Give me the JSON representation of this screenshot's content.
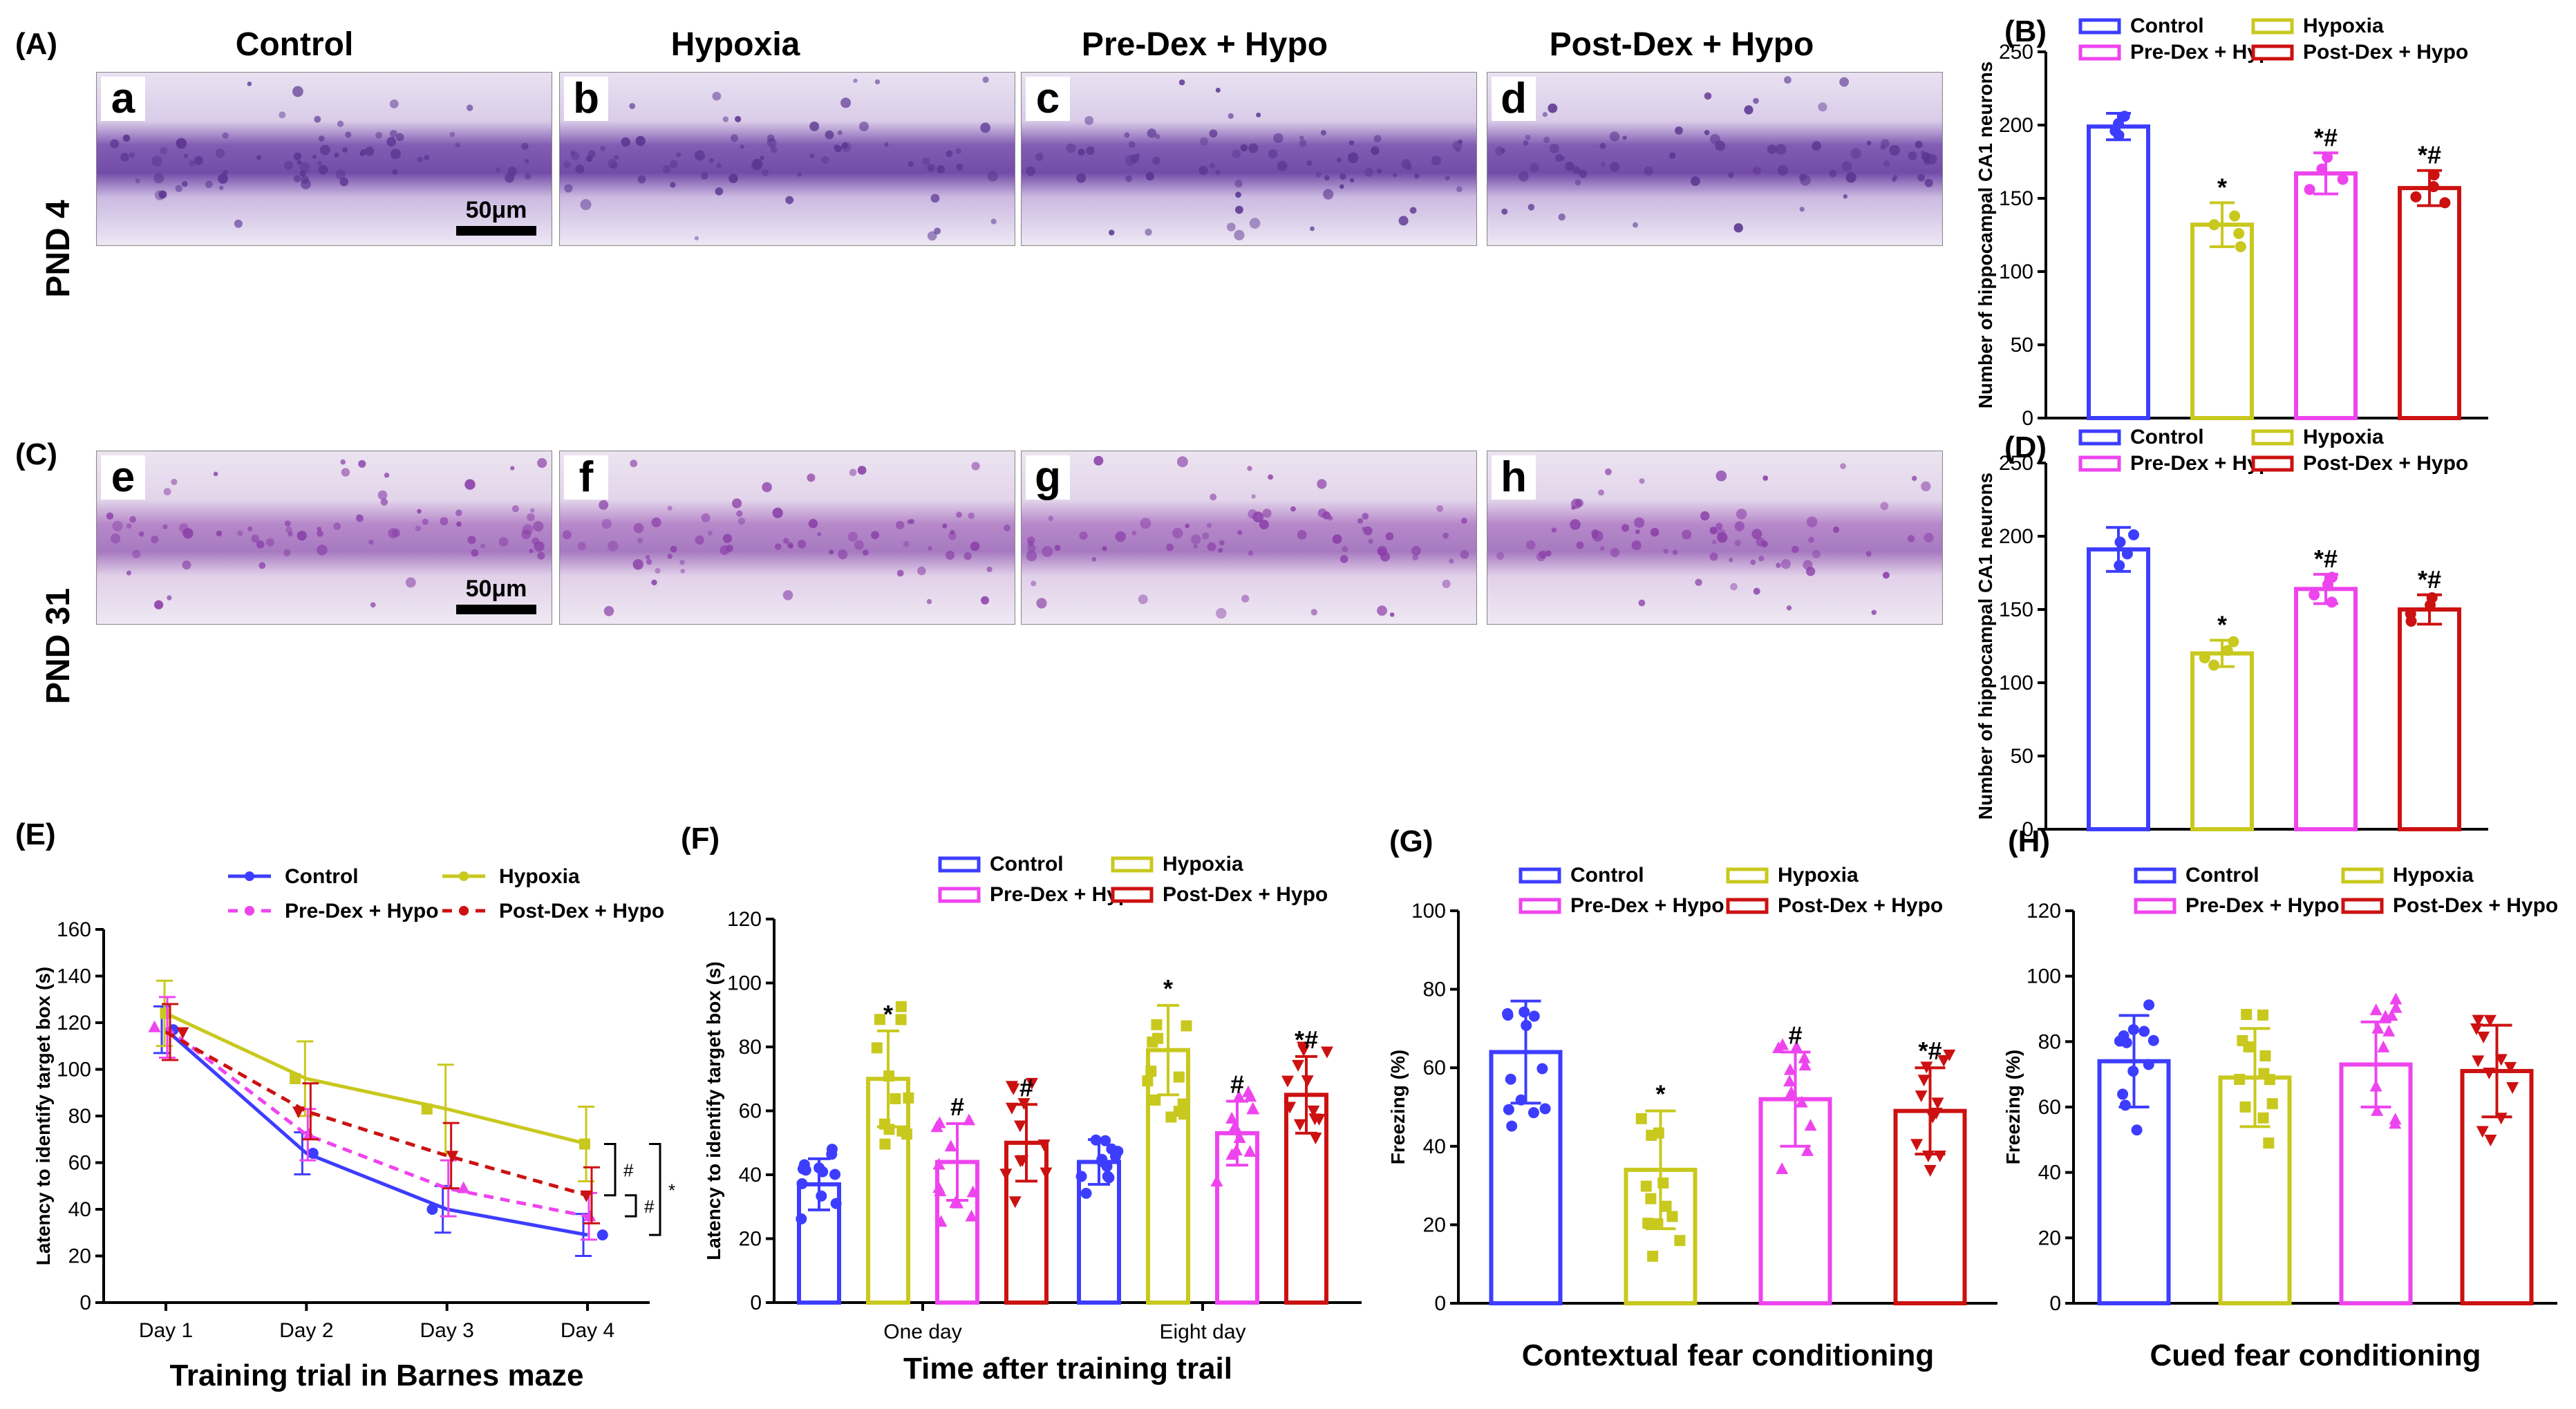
{
  "colors": {
    "Control": "#3d3dff",
    "Hypoxia": "#c8c81e",
    "Pre-Dex + Hypo": "#ee44ee",
    "Post-Dex + Hypo": "#cc1111",
    "stain_bg": "#e6ddf0",
    "stain_cell": "#6b3c9a"
  },
  "micrograph": {
    "columns": [
      "Control",
      "Hypoxia",
      "Pre-Dex + Hypo",
      "Post-Dex + Hypo"
    ],
    "panelA_label": "(A)",
    "panelC_label": "(C)",
    "row_labels": [
      "PND 4",
      "PND 31"
    ],
    "letters_top": [
      "a",
      "b",
      "c",
      "d"
    ],
    "letters_bottom": [
      "e",
      "f",
      "g",
      "h"
    ],
    "scale_bar_label": "50μm"
  },
  "chart_data": [
    {
      "id": "B",
      "panel_label": "(B)",
      "type": "bar",
      "categories": [
        "Control",
        "Hypoxia",
        "Pre-Dex + Hypo",
        "Post-Dex + Hypo"
      ],
      "values": [
        199,
        132,
        167,
        157
      ],
      "errors": [
        9,
        15,
        14,
        12
      ],
      "points": [
        [
          193,
          196,
          201,
          206
        ],
        [
          117,
          126,
          132,
          138
        ],
        [
          156,
          163,
          170,
          178
        ],
        [
          147,
          151,
          158,
          166
        ]
      ],
      "sig": [
        "",
        "*",
        "*#",
        "*#"
      ],
      "ylabel": "Number of hippocampal CA1 neurons",
      "ylim": [
        0,
        250
      ],
      "yticks": [
        0,
        50,
        100,
        150,
        200,
        250
      ]
    },
    {
      "id": "D",
      "panel_label": "(D)",
      "type": "bar",
      "categories": [
        "Control",
        "Hypoxia",
        "Pre-Dex + Hypo",
        "Post-Dex + Hypo"
      ],
      "values": [
        191,
        120,
        164,
        150
      ],
      "errors": [
        15,
        9,
        10,
        10
      ],
      "points": [
        [
          180,
          188,
          196,
          201
        ],
        [
          112,
          117,
          122,
          128
        ],
        [
          155,
          160,
          167,
          172
        ],
        [
          142,
          147,
          153,
          158
        ]
      ],
      "sig": [
        "",
        "*",
        "*#",
        "*#"
      ],
      "ylabel": "Number of hippocampal CA1 neurons",
      "ylim": [
        0,
        250
      ],
      "yticks": [
        0,
        50,
        100,
        150,
        200,
        250
      ]
    },
    {
      "id": "E",
      "panel_label": "(E)",
      "type": "line",
      "x": [
        "Day 1",
        "Day 2",
        "Day 3",
        "Day 4"
      ],
      "series": [
        {
          "name": "Control",
          "values": [
            117,
            64,
            40,
            29
          ],
          "errors": [
            10,
            9,
            10,
            9
          ]
        },
        {
          "name": "Hypoxia",
          "values": [
            124,
            96,
            83,
            68
          ],
          "errors": [
            14,
            16,
            19,
            16
          ]
        },
        {
          "name": "Pre-Dex + Hypo",
          "values": [
            118,
            72,
            49,
            37
          ],
          "errors": [
            13,
            11,
            12,
            10
          ]
        },
        {
          "name": "Post-Dex + Hypo",
          "values": [
            116,
            82,
            63,
            46
          ],
          "errors": [
            12,
            12,
            14,
            12
          ]
        }
      ],
      "brackets": [
        "#",
        "#",
        "*"
      ],
      "ylabel": "Latency to identify target box (s)",
      "xlabel": "Training trial in Barnes maze",
      "ylim": [
        0,
        160
      ],
      "yticks": [
        0,
        20,
        40,
        60,
        80,
        100,
        120,
        140,
        160
      ]
    },
    {
      "id": "F",
      "panel_label": "(F)",
      "type": "bar",
      "categories": [
        "One day",
        "Eight day"
      ],
      "series": [
        {
          "name": "Control",
          "values": [
            37,
            44
          ],
          "errors": [
            8,
            7
          ],
          "sig": [
            "",
            ""
          ]
        },
        {
          "name": "Hypoxia",
          "values": [
            70,
            79
          ],
          "errors": [
            15,
            14
          ],
          "sig": [
            "*",
            "*"
          ]
        },
        {
          "name": "Pre-Dex + Hypo",
          "values": [
            44,
            53
          ],
          "errors": [
            12,
            10
          ],
          "sig": [
            "#",
            "#"
          ]
        },
        {
          "name": "Post-Dex + Hypo",
          "values": [
            50,
            65
          ],
          "errors": [
            12,
            12
          ],
          "sig": [
            "#",
            "*#"
          ]
        }
      ],
      "ylabel": "Latency to identify target box (s)",
      "xlabel": "Time after training trail",
      "ylim": [
        0,
        120
      ],
      "yticks": [
        0,
        20,
        40,
        60,
        80,
        100,
        120
      ]
    },
    {
      "id": "G",
      "panel_label": "(G)",
      "type": "bar",
      "categories": [
        "Control",
        "Hypoxia",
        "Pre-Dex + Hypo",
        "Post-Dex + Hypo"
      ],
      "values": [
        64,
        34,
        52,
        49
      ],
      "errors": [
        13,
        15,
        12,
        11
      ],
      "sig": [
        "",
        "*",
        "#",
        "*#"
      ],
      "ylabel": "Freezing (%)",
      "xlabel": "Contextual fear conditioning",
      "ylim": [
        0,
        100
      ],
      "yticks": [
        0,
        20,
        40,
        60,
        80,
        100
      ]
    },
    {
      "id": "H",
      "panel_label": "(H)",
      "type": "bar",
      "categories": [
        "Control",
        "Hypoxia",
        "Pre-Dex + Hypo",
        "Post-Dex + Hypo"
      ],
      "values": [
        74,
        69,
        73,
        71
      ],
      "errors": [
        14,
        15,
        13,
        14
      ],
      "sig": [
        "",
        "",
        "",
        ""
      ],
      "ylabel": "Freezing (%)",
      "xlabel": "Cued fear conditioning",
      "ylim": [
        0,
        120
      ],
      "yticks": [
        0,
        20,
        40,
        60,
        80,
        100,
        120
      ]
    }
  ]
}
